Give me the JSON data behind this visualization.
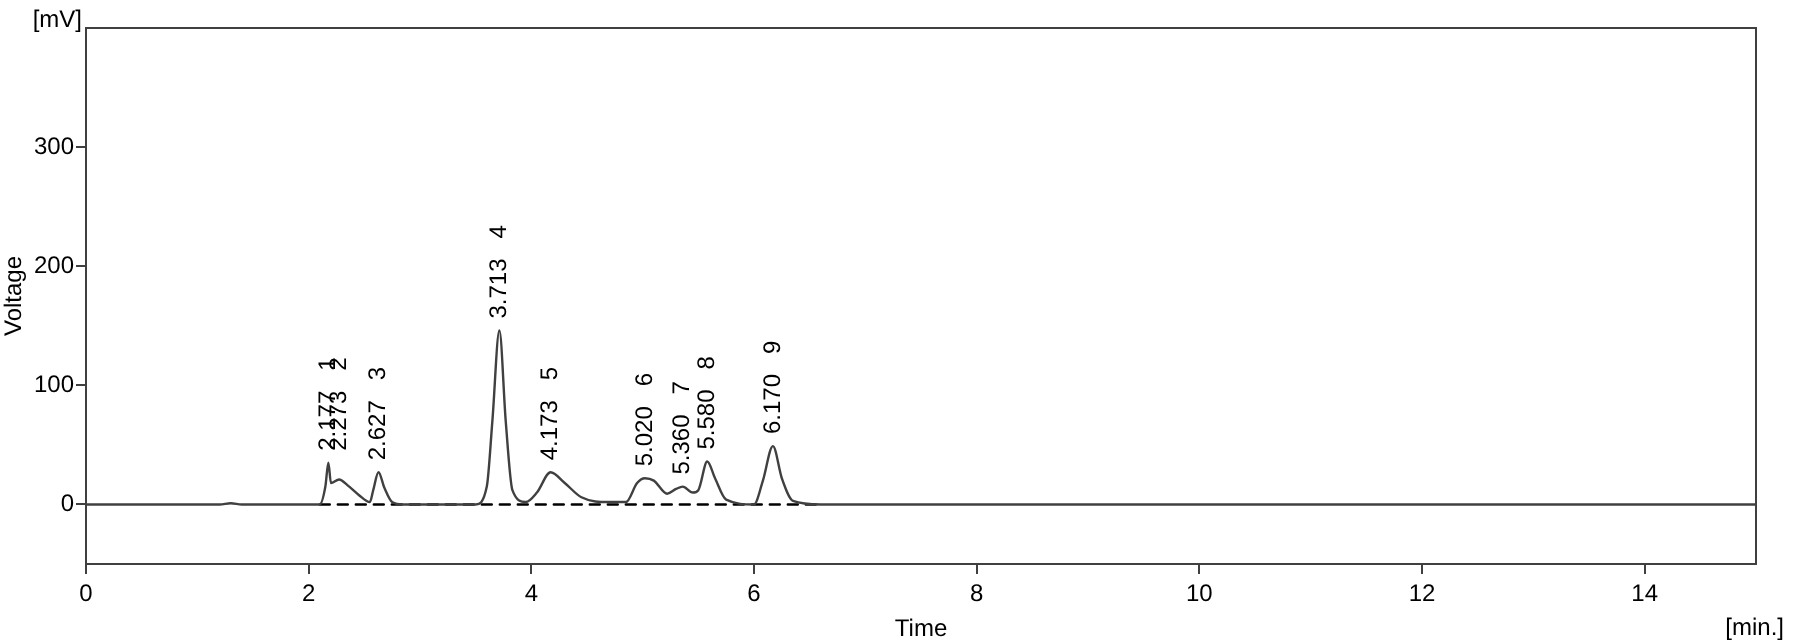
{
  "chart_data": {
    "type": "line",
    "xlabel": "Time",
    "ylabel": "Voltage",
    "xlim": [
      0,
      15
    ],
    "xticks": [
      0,
      2,
      4,
      6,
      8,
      10,
      12,
      14
    ],
    "ylim": [
      -50,
      400
    ],
    "yticks": [
      0,
      100,
      200,
      300
    ],
    "grid": false,
    "legend": false,
    "marker": "none",
    "series": [
      {
        "type": "line",
        "line_style": "solid",
        "color": "#404040",
        "x": [
          0,
          1.2,
          1.3,
          1.4,
          2.1,
          2.15,
          2.177,
          2.2,
          2.273,
          2.35,
          2.45,
          2.55,
          2.58,
          2.627,
          2.68,
          2.75,
          2.85,
          3.5,
          3.6,
          3.65,
          3.713,
          3.77,
          3.83,
          3.95,
          4.05,
          4.173,
          4.3,
          4.45,
          4.7,
          4.85,
          4.95,
          5.02,
          5.1,
          5.22,
          5.3,
          5.36,
          5.45,
          5.5,
          5.58,
          5.65,
          5.75,
          6.0,
          6.08,
          6.17,
          6.25,
          6.35,
          6.6,
          15
        ],
        "values": [
          0,
          0,
          1,
          0,
          0,
          15,
          35,
          18,
          21,
          16,
          8,
          2,
          12,
          27,
          14,
          2,
          0,
          0,
          15,
          70,
          146,
          70,
          12,
          2,
          10,
          27,
          18,
          6,
          2,
          2,
          18,
          22,
          20,
          9,
          13,
          15,
          10,
          12,
          36,
          22,
          4,
          0,
          20,
          49,
          22,
          3,
          0,
          0
        ]
      },
      {
        "type": "line",
        "line_style": "dashed",
        "color": "#000000",
        "x": [
          2.1,
          6.6
        ],
        "values": [
          0,
          0
        ]
      }
    ],
    "annotations": [
      "[mV]",
      "[min.]",
      {
        "text": "2.177   1",
        "x": 2.177,
        "y": 35
      },
      {
        "text": "2.273   2",
        "x": 2.273,
        "y": 21
      },
      {
        "text": "2.627   3",
        "x": 2.627,
        "y": 27
      },
      {
        "text": "3.713   4",
        "x": 3.713,
        "y": 146
      },
      {
        "text": "4.173   5",
        "x": 4.173,
        "y": 27
      },
      {
        "text": "5.020   6",
        "x": 5.02,
        "y": 22
      },
      {
        "text": "5.360   7",
        "x": 5.36,
        "y": 15
      },
      {
        "text": "5.580   8",
        "x": 5.58,
        "y": 36
      },
      {
        "text": "6.170   9",
        "x": 6.17,
        "y": 49
      }
    ]
  }
}
